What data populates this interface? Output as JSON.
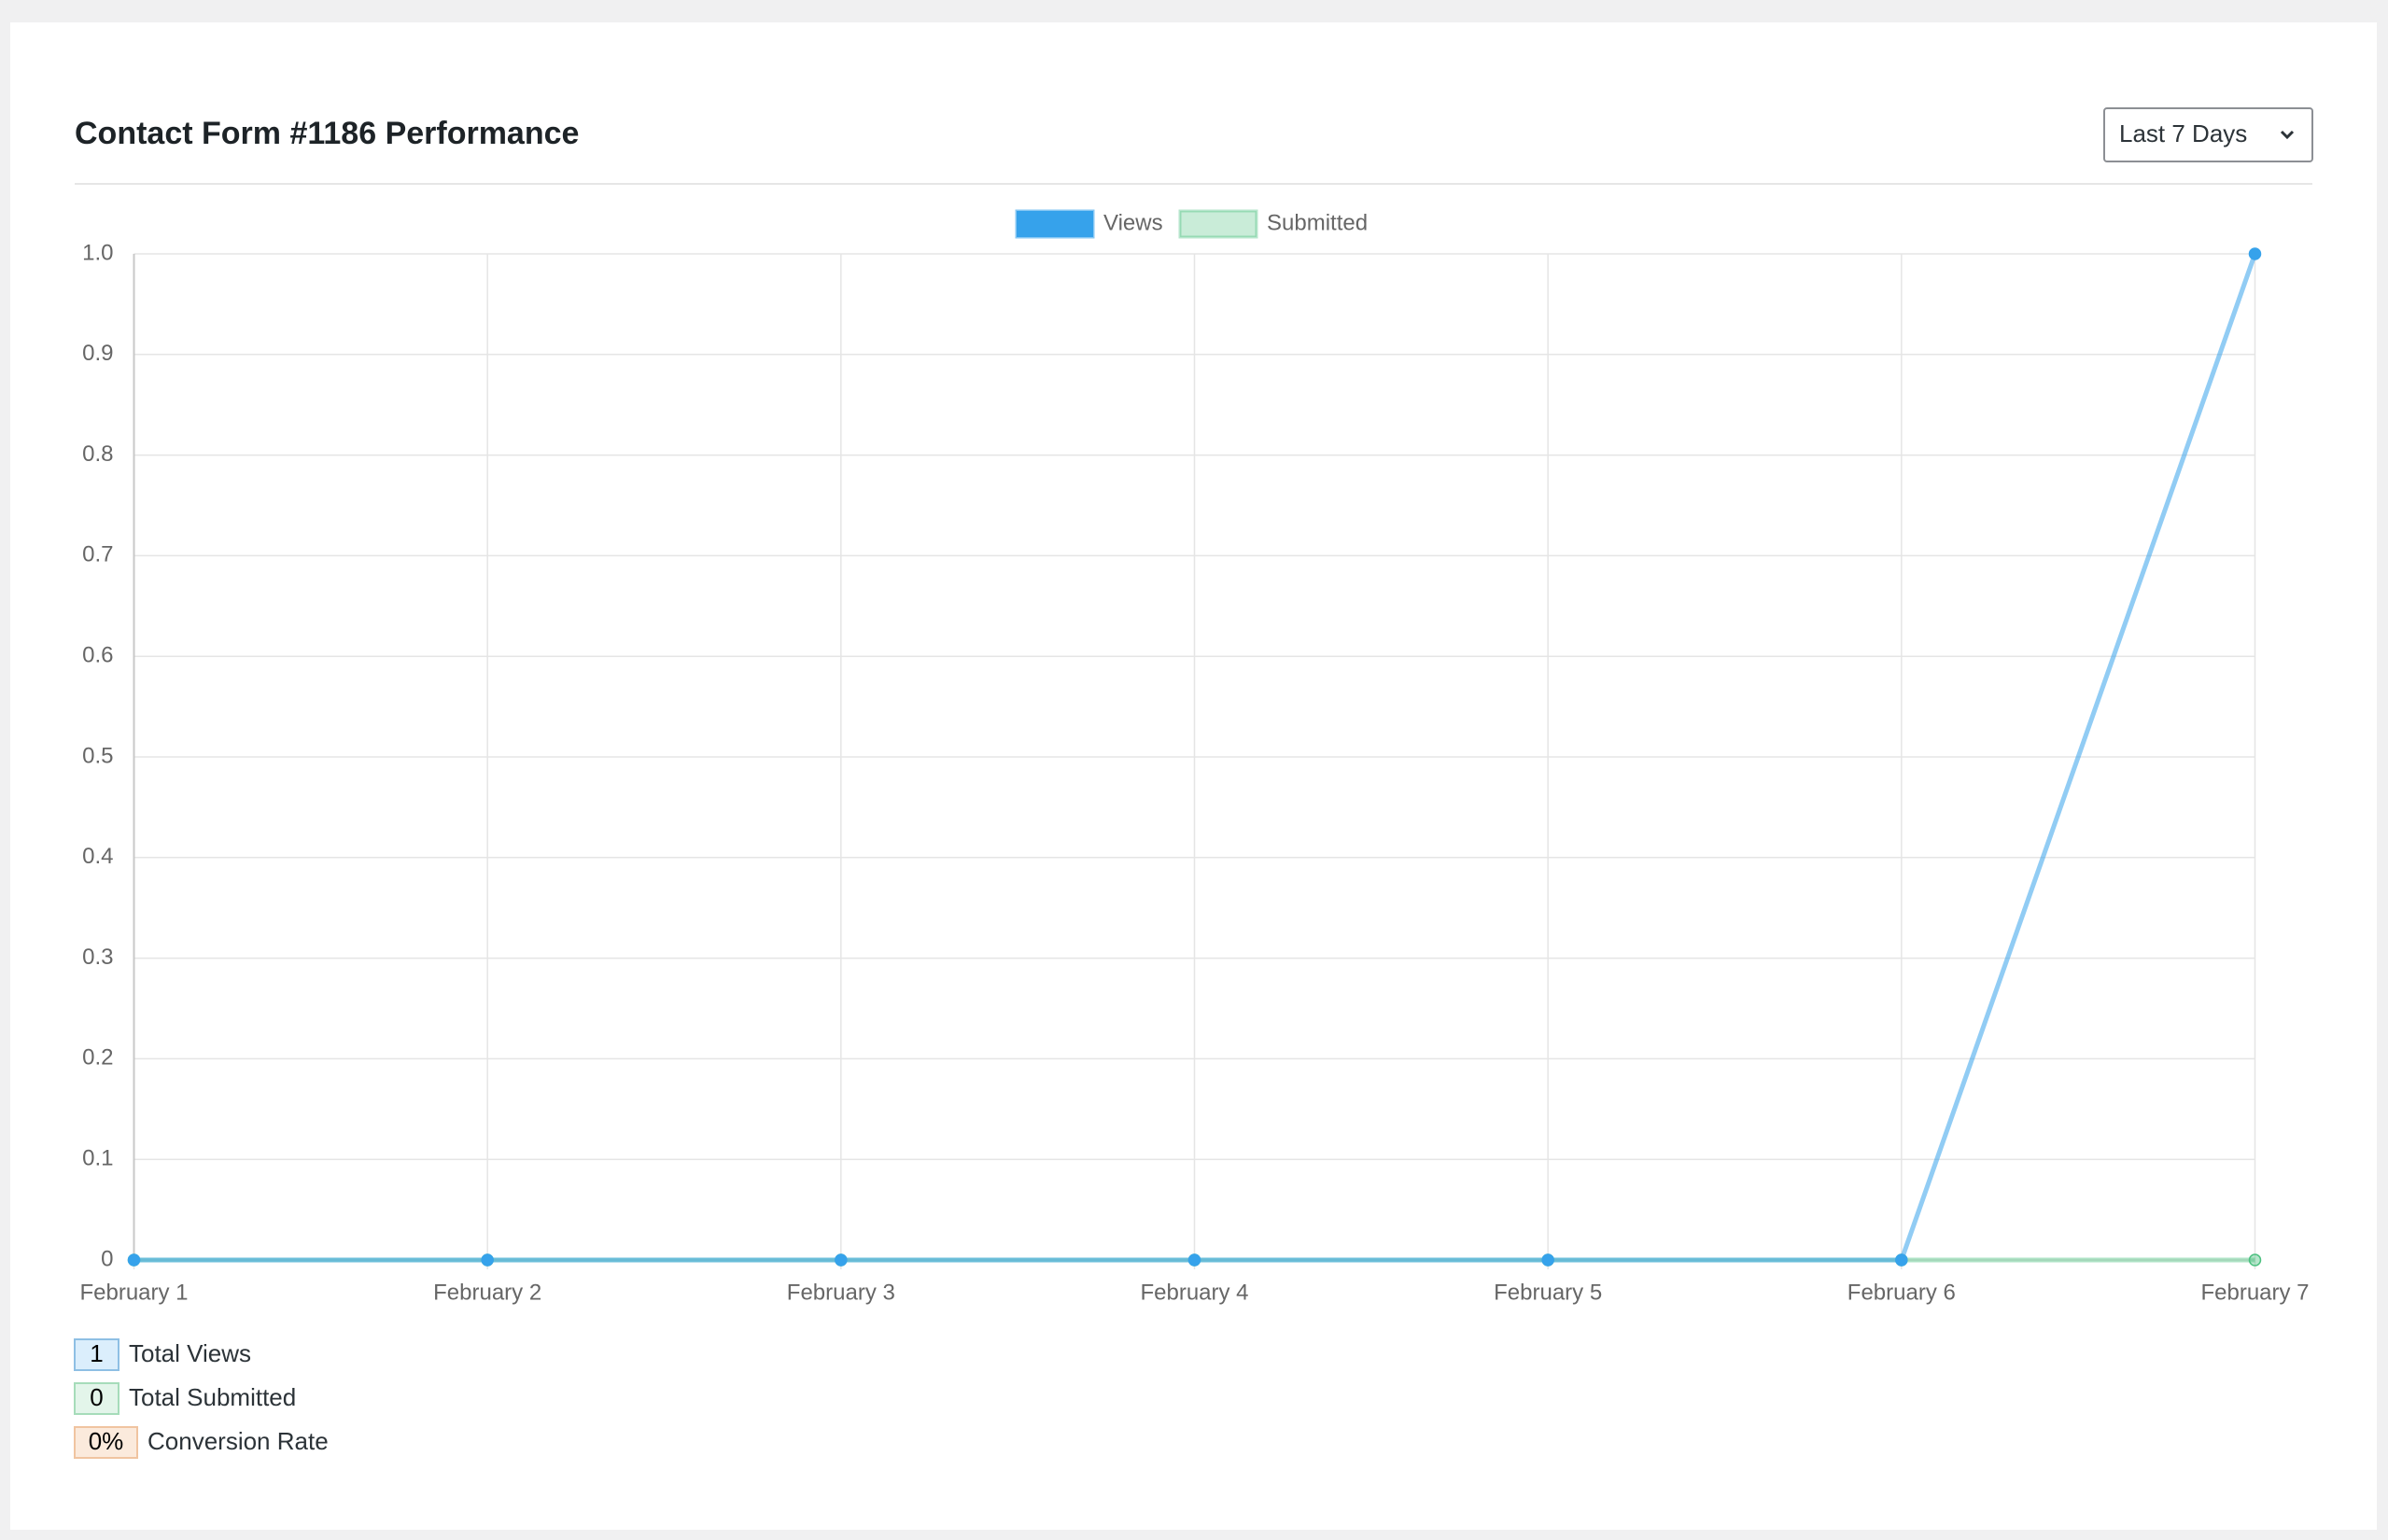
{
  "chart_data": {
    "type": "line",
    "title": "Contact Form #1186 Performance",
    "categories": [
      "February 1",
      "February 2",
      "February 3",
      "February 4",
      "February 5",
      "February 6",
      "February 7"
    ],
    "series": [
      {
        "name": "Views",
        "color": "#36a2eb",
        "values": [
          0,
          0,
          0,
          0,
          0,
          0,
          1
        ]
      },
      {
        "name": "Submitted",
        "color": "#4bc07f",
        "values": [
          0,
          0,
          0,
          0,
          0,
          0,
          0
        ]
      }
    ],
    "ylim": [
      0,
      1
    ],
    "yticks": [
      0,
      0.1,
      0.2,
      0.3,
      0.4,
      0.5,
      0.6,
      0.7,
      0.8,
      0.9,
      {
        "value": 1,
        "label": "1.0"
      }
    ],
    "grid": true,
    "legend": "top"
  },
  "filter": "Last 7 Days",
  "summary": [
    {
      "value": "1",
      "label": "Total Views"
    },
    {
      "value": "0",
      "label": "Total Submitted"
    },
    {
      "value": "0%",
      "label": "Conversion Rate"
    }
  ]
}
